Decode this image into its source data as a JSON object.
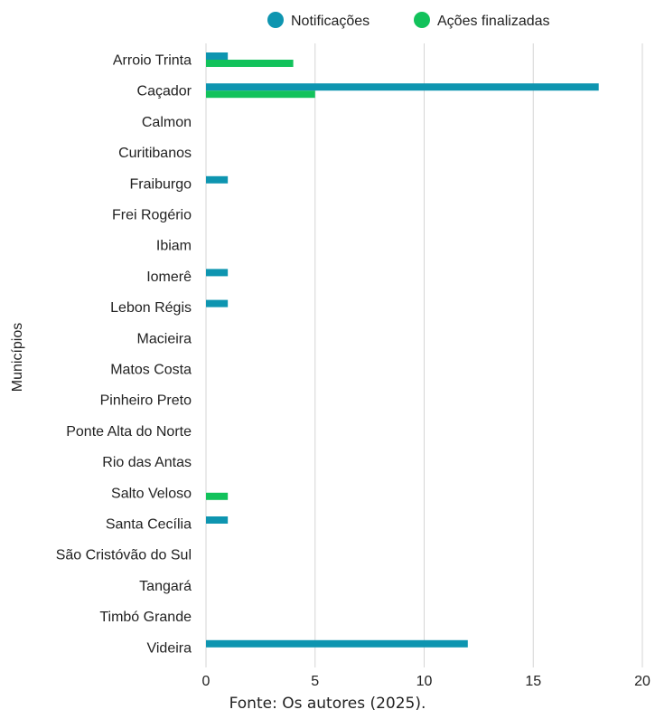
{
  "chart_data": {
    "type": "bar",
    "orientation": "horizontal",
    "categories": [
      "Arroio Trinta",
      "Caçador",
      "Calmon",
      "Curitibanos",
      "Fraiburgo",
      "Frei Rogério",
      "Ibiam",
      "Iomerê",
      "Lebon Régis",
      "Macieira",
      "Matos Costa",
      "Pinheiro Preto",
      "Ponte Alta do Norte",
      "Rio das Antas",
      "Salto Veloso",
      "Santa Cecília",
      "São Cristóvão do Sul",
      "Tangará",
      "Timbó Grande",
      "Videira"
    ],
    "series": [
      {
        "name": "Notificações",
        "color": "#0e95b0",
        "values": [
          1,
          18,
          0,
          0,
          1,
          0,
          0,
          1,
          1,
          0,
          0,
          0,
          0,
          0,
          0,
          1,
          0,
          0,
          0,
          12
        ]
      },
      {
        "name": "Ações finalizadas",
        "color": "#12c25b",
        "values": [
          4,
          5,
          0,
          0,
          0,
          0,
          0,
          0,
          0,
          0,
          0,
          0,
          0,
          0,
          1,
          0,
          0,
          0,
          0,
          0
        ]
      }
    ],
    "xlim": [
      0,
      20
    ],
    "xticks": [
      0,
      5,
      10,
      15,
      20
    ],
    "ylabel": "Municípios",
    "xlabel": "",
    "legend_position": "top",
    "grid": "vertical"
  },
  "source_note": "Fonte: Os autores (2025)."
}
